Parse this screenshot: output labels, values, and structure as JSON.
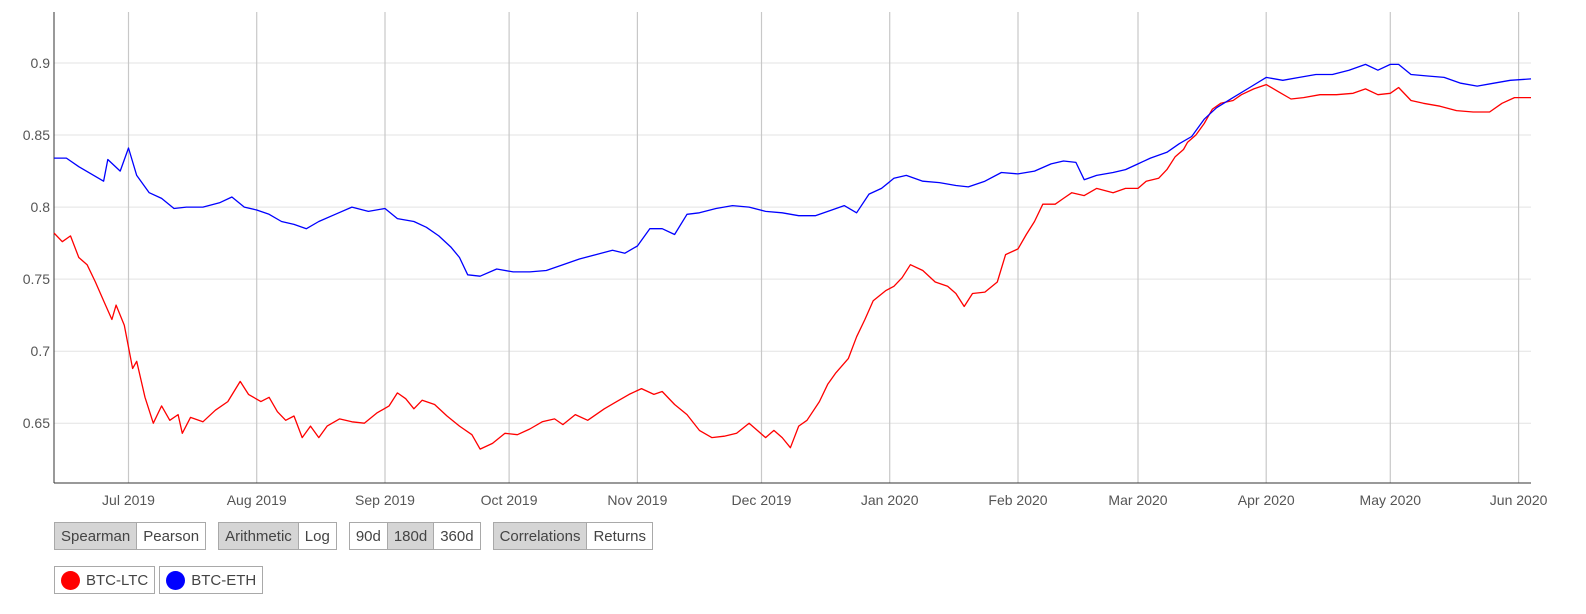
{
  "controls": {
    "method": {
      "options": [
        "Spearman",
        "Pearson"
      ],
      "selected": "Spearman"
    },
    "scale": {
      "options": [
        "Arithmetic",
        "Log"
      ],
      "selected": "Arithmetic"
    },
    "window": {
      "options": [
        "90d",
        "180d",
        "360d"
      ],
      "selected": "180d"
    },
    "view": {
      "options": [
        "Correlations",
        "Returns"
      ],
      "selected": "Correlations"
    }
  },
  "legend": [
    {
      "label": "BTC-LTC",
      "color": "#ff0000"
    },
    {
      "label": "BTC-ETH",
      "color": "#0000ff"
    }
  ],
  "chart_data": {
    "type": "line",
    "title": "",
    "xlabel": "",
    "ylabel": "",
    "x_range": [
      "2019-06-13",
      "2020-06-04"
    ],
    "ylim": [
      0.6085,
      0.9354
    ],
    "y_ticks": [
      0.65,
      0.7,
      0.75,
      0.8,
      0.85,
      0.9
    ],
    "x_ticks": [
      {
        "date": "2019-07-01",
        "label": "Jul 2019"
      },
      {
        "date": "2019-08-01",
        "label": "Aug 2019"
      },
      {
        "date": "2019-09-01",
        "label": "Sep 2019"
      },
      {
        "date": "2019-10-01",
        "label": "Oct 2019"
      },
      {
        "date": "2019-11-01",
        "label": "Nov 2019"
      },
      {
        "date": "2019-12-01",
        "label": "Dec 2019"
      },
      {
        "date": "2020-01-01",
        "label": "Jan 2020"
      },
      {
        "date": "2020-02-01",
        "label": "Feb 2020"
      },
      {
        "date": "2020-03-01",
        "label": "Mar 2020"
      },
      {
        "date": "2020-04-01",
        "label": "Apr 2020"
      },
      {
        "date": "2020-05-01",
        "label": "May 2020"
      },
      {
        "date": "2020-06-01",
        "label": "Jun 2020"
      }
    ],
    "grid": true,
    "series": [
      {
        "name": "BTC-LTC",
        "color": "#ff0000",
        "points": [
          [
            "2019-06-13",
            0.782
          ],
          [
            "2019-06-15",
            0.776
          ],
          [
            "2019-06-17",
            0.78
          ],
          [
            "2019-06-19",
            0.765
          ],
          [
            "2019-06-21",
            0.76
          ],
          [
            "2019-06-23",
            0.748
          ],
          [
            "2019-06-25",
            0.735
          ],
          [
            "2019-06-27",
            0.722
          ],
          [
            "2019-06-28",
            0.732
          ],
          [
            "2019-06-30",
            0.718
          ],
          [
            "2019-07-02",
            0.688
          ],
          [
            "2019-07-03",
            0.693
          ],
          [
            "2019-07-05",
            0.668
          ],
          [
            "2019-07-07",
            0.65
          ],
          [
            "2019-07-09",
            0.662
          ],
          [
            "2019-07-11",
            0.652
          ],
          [
            "2019-07-13",
            0.656
          ],
          [
            "2019-07-14",
            0.643
          ],
          [
            "2019-07-16",
            0.654
          ],
          [
            "2019-07-19",
            0.651
          ],
          [
            "2019-07-22",
            0.659
          ],
          [
            "2019-07-25",
            0.665
          ],
          [
            "2019-07-28",
            0.679
          ],
          [
            "2019-07-30",
            0.67
          ],
          [
            "2019-08-02",
            0.665
          ],
          [
            "2019-08-04",
            0.668
          ],
          [
            "2019-08-06",
            0.658
          ],
          [
            "2019-08-08",
            0.652
          ],
          [
            "2019-08-10",
            0.655
          ],
          [
            "2019-08-12",
            0.64
          ],
          [
            "2019-08-14",
            0.648
          ],
          [
            "2019-08-16",
            0.64
          ],
          [
            "2019-08-18",
            0.648
          ],
          [
            "2019-08-21",
            0.653
          ],
          [
            "2019-08-24",
            0.651
          ],
          [
            "2019-08-27",
            0.65
          ],
          [
            "2019-08-30",
            0.657
          ],
          [
            "2019-09-02",
            0.662
          ],
          [
            "2019-09-04",
            0.671
          ],
          [
            "2019-09-06",
            0.667
          ],
          [
            "2019-09-08",
            0.66
          ],
          [
            "2019-09-10",
            0.666
          ],
          [
            "2019-09-13",
            0.663
          ],
          [
            "2019-09-16",
            0.655
          ],
          [
            "2019-09-19",
            0.648
          ],
          [
            "2019-09-22",
            0.642
          ],
          [
            "2019-09-24",
            0.632
          ],
          [
            "2019-09-27",
            0.636
          ],
          [
            "2019-09-30",
            0.643
          ],
          [
            "2019-10-03",
            0.642
          ],
          [
            "2019-10-06",
            0.646
          ],
          [
            "2019-10-09",
            0.651
          ],
          [
            "2019-10-12",
            0.653
          ],
          [
            "2019-10-14",
            0.649
          ],
          [
            "2019-10-17",
            0.656
          ],
          [
            "2019-10-20",
            0.652
          ],
          [
            "2019-10-24",
            0.66
          ],
          [
            "2019-10-27",
            0.665
          ],
          [
            "2019-10-30",
            0.67
          ],
          [
            "2019-11-02",
            0.674
          ],
          [
            "2019-11-05",
            0.67
          ],
          [
            "2019-11-07",
            0.672
          ],
          [
            "2019-11-10",
            0.663
          ],
          [
            "2019-11-13",
            0.656
          ],
          [
            "2019-11-16",
            0.645
          ],
          [
            "2019-11-19",
            0.64
          ],
          [
            "2019-11-22",
            0.641
          ],
          [
            "2019-11-25",
            0.643
          ],
          [
            "2019-11-28",
            0.65
          ],
          [
            "2019-11-30",
            0.645
          ],
          [
            "2019-12-02",
            0.64
          ],
          [
            "2019-12-04",
            0.645
          ],
          [
            "2019-12-06",
            0.64
          ],
          [
            "2019-12-08",
            0.633
          ],
          [
            "2019-12-10",
            0.648
          ],
          [
            "2019-12-12",
            0.652
          ],
          [
            "2019-12-15",
            0.665
          ],
          [
            "2019-12-17",
            0.677
          ],
          [
            "2019-12-19",
            0.685
          ],
          [
            "2019-12-22",
            0.695
          ],
          [
            "2019-12-24",
            0.71
          ],
          [
            "2019-12-26",
            0.722
          ],
          [
            "2019-12-28",
            0.735
          ],
          [
            "2019-12-31",
            0.742
          ],
          [
            "2020-01-02",
            0.745
          ],
          [
            "2020-01-04",
            0.751
          ],
          [
            "2020-01-06",
            0.76
          ],
          [
            "2020-01-09",
            0.756
          ],
          [
            "2020-01-12",
            0.748
          ],
          [
            "2020-01-15",
            0.745
          ],
          [
            "2020-01-17",
            0.74
          ],
          [
            "2020-01-19",
            0.731
          ],
          [
            "2020-01-21",
            0.74
          ],
          [
            "2020-01-24",
            0.741
          ],
          [
            "2020-01-27",
            0.748
          ],
          [
            "2020-01-29",
            0.767
          ],
          [
            "2020-02-01",
            0.771
          ],
          [
            "2020-02-03",
            0.781
          ],
          [
            "2020-02-05",
            0.79
          ],
          [
            "2020-02-07",
            0.802
          ],
          [
            "2020-02-10",
            0.802
          ],
          [
            "2020-02-12",
            0.806
          ],
          [
            "2020-02-14",
            0.81
          ],
          [
            "2020-02-17",
            0.808
          ],
          [
            "2020-02-20",
            0.813
          ],
          [
            "2020-02-24",
            0.81
          ],
          [
            "2020-02-27",
            0.813
          ],
          [
            "2020-03-01",
            0.813
          ],
          [
            "2020-03-03",
            0.818
          ],
          [
            "2020-03-06",
            0.82
          ],
          [
            "2020-03-08",
            0.826
          ],
          [
            "2020-03-10",
            0.835
          ],
          [
            "2020-03-12",
            0.84
          ],
          [
            "2020-03-13",
            0.845
          ],
          [
            "2020-03-15",
            0.85
          ],
          [
            "2020-03-17",
            0.858
          ],
          [
            "2020-03-19",
            0.868
          ],
          [
            "2020-03-21",
            0.872
          ],
          [
            "2020-03-24",
            0.874
          ],
          [
            "2020-03-26",
            0.878
          ],
          [
            "2020-03-29",
            0.882
          ],
          [
            "2020-04-01",
            0.885
          ],
          [
            "2020-04-04",
            0.88
          ],
          [
            "2020-04-07",
            0.875
          ],
          [
            "2020-04-10",
            0.876
          ],
          [
            "2020-04-14",
            0.878
          ],
          [
            "2020-04-18",
            0.878
          ],
          [
            "2020-04-22",
            0.879
          ],
          [
            "2020-04-25",
            0.882
          ],
          [
            "2020-04-28",
            0.878
          ],
          [
            "2020-05-01",
            0.879
          ],
          [
            "2020-05-03",
            0.883
          ],
          [
            "2020-05-06",
            0.874
          ],
          [
            "2020-05-09",
            0.872
          ],
          [
            "2020-05-13",
            0.87
          ],
          [
            "2020-05-17",
            0.867
          ],
          [
            "2020-05-21",
            0.866
          ],
          [
            "2020-05-25",
            0.866
          ],
          [
            "2020-05-28",
            0.872
          ],
          [
            "2020-05-31",
            0.876
          ],
          [
            "2020-06-04",
            0.876
          ]
        ]
      },
      {
        "name": "BTC-ETH",
        "color": "#0000ff",
        "points": [
          [
            "2019-06-13",
            0.834
          ],
          [
            "2019-06-16",
            0.834
          ],
          [
            "2019-06-19",
            0.828
          ],
          [
            "2019-06-22",
            0.823
          ],
          [
            "2019-06-25",
            0.818
          ],
          [
            "2019-06-26",
            0.833
          ],
          [
            "2019-06-29",
            0.825
          ],
          [
            "2019-07-01",
            0.841
          ],
          [
            "2019-07-03",
            0.822
          ],
          [
            "2019-07-06",
            0.81
          ],
          [
            "2019-07-09",
            0.806
          ],
          [
            "2019-07-12",
            0.799
          ],
          [
            "2019-07-15",
            0.8
          ],
          [
            "2019-07-19",
            0.8
          ],
          [
            "2019-07-23",
            0.803
          ],
          [
            "2019-07-26",
            0.807
          ],
          [
            "2019-07-29",
            0.8
          ],
          [
            "2019-08-01",
            0.798
          ],
          [
            "2019-08-04",
            0.795
          ],
          [
            "2019-08-07",
            0.79
          ],
          [
            "2019-08-10",
            0.788
          ],
          [
            "2019-08-13",
            0.785
          ],
          [
            "2019-08-16",
            0.79
          ],
          [
            "2019-08-20",
            0.795
          ],
          [
            "2019-08-24",
            0.8
          ],
          [
            "2019-08-28",
            0.797
          ],
          [
            "2019-09-01",
            0.799
          ],
          [
            "2019-09-04",
            0.792
          ],
          [
            "2019-09-08",
            0.79
          ],
          [
            "2019-09-11",
            0.786
          ],
          [
            "2019-09-14",
            0.78
          ],
          [
            "2019-09-17",
            0.772
          ],
          [
            "2019-09-19",
            0.765
          ],
          [
            "2019-09-21",
            0.753
          ],
          [
            "2019-09-24",
            0.752
          ],
          [
            "2019-09-28",
            0.757
          ],
          [
            "2019-10-02",
            0.755
          ],
          [
            "2019-10-06",
            0.755
          ],
          [
            "2019-10-10",
            0.756
          ],
          [
            "2019-10-14",
            0.76
          ],
          [
            "2019-10-18",
            0.764
          ],
          [
            "2019-10-22",
            0.767
          ],
          [
            "2019-10-26",
            0.77
          ],
          [
            "2019-10-29",
            0.768
          ],
          [
            "2019-11-01",
            0.773
          ],
          [
            "2019-11-04",
            0.785
          ],
          [
            "2019-11-07",
            0.785
          ],
          [
            "2019-11-10",
            0.781
          ],
          [
            "2019-11-13",
            0.795
          ],
          [
            "2019-11-16",
            0.796
          ],
          [
            "2019-11-20",
            0.799
          ],
          [
            "2019-11-24",
            0.801
          ],
          [
            "2019-11-28",
            0.8
          ],
          [
            "2019-12-02",
            0.797
          ],
          [
            "2019-12-06",
            0.796
          ],
          [
            "2019-12-10",
            0.794
          ],
          [
            "2019-12-14",
            0.794
          ],
          [
            "2019-12-18",
            0.798
          ],
          [
            "2019-12-21",
            0.801
          ],
          [
            "2019-12-24",
            0.796
          ],
          [
            "2019-12-27",
            0.809
          ],
          [
            "2019-12-30",
            0.813
          ],
          [
            "2020-01-02",
            0.82
          ],
          [
            "2020-01-05",
            0.822
          ],
          [
            "2020-01-09",
            0.818
          ],
          [
            "2020-01-13",
            0.817
          ],
          [
            "2020-01-17",
            0.815
          ],
          [
            "2020-01-20",
            0.814
          ],
          [
            "2020-01-24",
            0.818
          ],
          [
            "2020-01-28",
            0.824
          ],
          [
            "2020-02-01",
            0.823
          ],
          [
            "2020-02-05",
            0.825
          ],
          [
            "2020-02-09",
            0.83
          ],
          [
            "2020-02-12",
            0.832
          ],
          [
            "2020-02-15",
            0.831
          ],
          [
            "2020-02-17",
            0.819
          ],
          [
            "2020-02-20",
            0.822
          ],
          [
            "2020-02-24",
            0.824
          ],
          [
            "2020-02-27",
            0.826
          ],
          [
            "2020-03-01",
            0.83
          ],
          [
            "2020-03-04",
            0.834
          ],
          [
            "2020-03-08",
            0.838
          ],
          [
            "2020-03-11",
            0.844
          ],
          [
            "2020-03-14",
            0.849
          ],
          [
            "2020-03-17",
            0.861
          ],
          [
            "2020-03-20",
            0.869
          ],
          [
            "2020-03-24",
            0.876
          ],
          [
            "2020-03-28",
            0.883
          ],
          [
            "2020-04-01",
            0.89
          ],
          [
            "2020-04-05",
            0.888
          ],
          [
            "2020-04-09",
            0.89
          ],
          [
            "2020-04-13",
            0.892
          ],
          [
            "2020-04-17",
            0.892
          ],
          [
            "2020-04-21",
            0.895
          ],
          [
            "2020-04-25",
            0.899
          ],
          [
            "2020-04-28",
            0.895
          ],
          [
            "2020-05-01",
            0.899
          ],
          [
            "2020-05-03",
            0.899
          ],
          [
            "2020-05-06",
            0.892
          ],
          [
            "2020-05-10",
            0.891
          ],
          [
            "2020-05-14",
            0.89
          ],
          [
            "2020-05-18",
            0.886
          ],
          [
            "2020-05-22",
            0.884
          ],
          [
            "2020-05-26",
            0.886
          ],
          [
            "2020-05-30",
            0.888
          ],
          [
            "2020-06-04",
            0.889
          ]
        ]
      }
    ]
  }
}
